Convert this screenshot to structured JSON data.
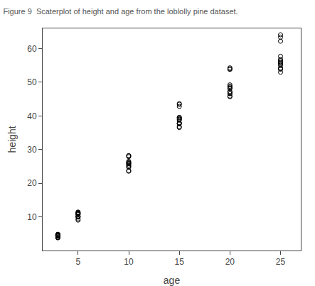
{
  "chart_data": {
    "type": "scatter",
    "title": "Figure 9  Scaterplot of height and age from the loblolly pine dataset.",
    "xlabel": "age",
    "ylabel": "height",
    "x": [
      3,
      3,
      3,
      3,
      3,
      3,
      3,
      3,
      3,
      3,
      3,
      3,
      3,
      3,
      5,
      5,
      5,
      5,
      5,
      5,
      5,
      5,
      5,
      5,
      5,
      5,
      5,
      5,
      10,
      10,
      10,
      10,
      10,
      10,
      10,
      10,
      10,
      10,
      10,
      10,
      10,
      10,
      15,
      15,
      15,
      15,
      15,
      15,
      15,
      15,
      15,
      15,
      15,
      15,
      15,
      15,
      20,
      20,
      20,
      20,
      20,
      20,
      20,
      20,
      20,
      20,
      20,
      20,
      20,
      20,
      25,
      25,
      25,
      25,
      25,
      25,
      25,
      25,
      25,
      25,
      25,
      25,
      25,
      25
    ],
    "values": [
      4.51,
      4.55,
      4.79,
      3.91,
      4.81,
      4.23,
      4.76,
      4.57,
      3.83,
      3.77,
      4.3,
      4.32,
      4.57,
      4.37,
      10.89,
      10.92,
      11.37,
      9.92,
      11.41,
      10.14,
      11.14,
      10.8,
      9.4,
      9.03,
      10.05,
      10.75,
      11.12,
      10.24,
      25.9,
      26.16,
      28.15,
      24.8,
      28.18,
      25.35,
      26.49,
      25.78,
      23.73,
      23.57,
      24.92,
      26.09,
      27.88,
      25.38,
      38.98,
      39.47,
      43.46,
      37.82,
      43.61,
      37.84,
      39.57,
      38.74,
      36.8,
      36.55,
      37.62,
      39.15,
      42.82,
      37.87,
      48.29,
      48.8,
      53.99,
      47.15,
      54.27,
      46.61,
      49.22,
      48.13,
      45.89,
      45.71,
      46.63,
      48.57,
      53.81,
      47.17,
      55.82,
      57.7,
      63.39,
      54.98,
      64.1,
      54.1,
      56.82,
      56.43,
      53.88,
      52.99,
      54.12,
      56.0,
      62.19,
      55.45
    ],
    "color": "black",
    "marker": "circle-open",
    "xlim": [
      1.5,
      27
    ],
    "ylim": [
      0,
      66
    ],
    "xticks": [
      5,
      10,
      15,
      20,
      25
    ],
    "yticks": [
      10,
      20,
      30,
      40,
      50,
      60
    ],
    "grid": false
  }
}
